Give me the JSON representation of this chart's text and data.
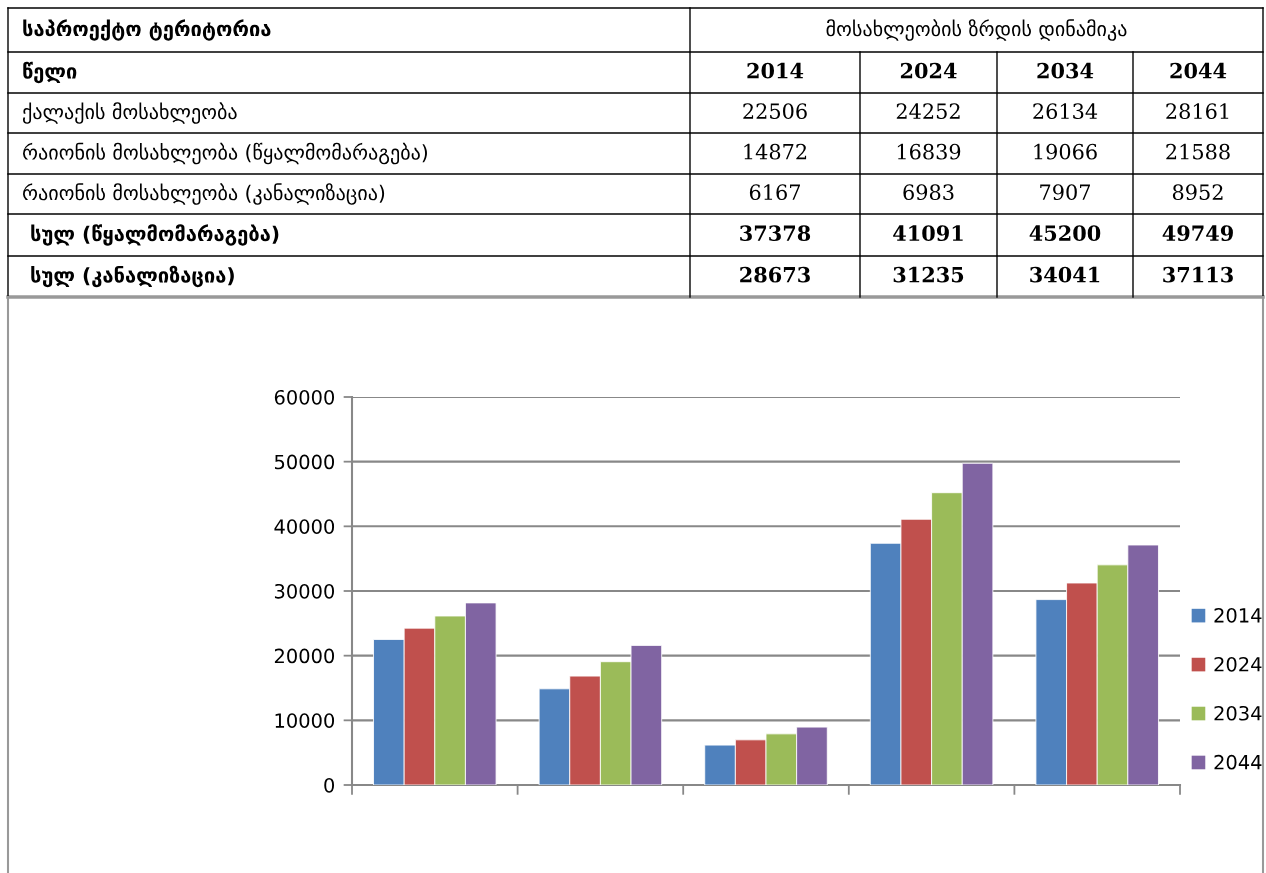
{
  "chart_data": [
    {
      "type": "other",
      "title": "მოსახლეობის ზრდის დინამიკა",
      "annotations": [
        "საპროექტო ტერიტორია",
        "წელი"
      ],
      "categories": [
        "ქალაქის მოსახლეობა",
        "რაიონის მოსახლეობა (წყალმომარაგება)",
        "რაიონის მოსახლეობა (კანალიზაცია)",
        "სულ (წყალმომარაგება)",
        "სულ (კანალიზაცია)"
      ],
      "series": [
        {
          "name": "2014",
          "values": [
            22506,
            14872,
            6167,
            37378,
            28673
          ]
        },
        {
          "name": "2024",
          "values": [
            24252,
            16839,
            6983,
            41091,
            31235
          ]
        },
        {
          "name": "2034",
          "values": [
            26134,
            19066,
            7907,
            45200,
            34041
          ]
        },
        {
          "name": "2044",
          "values": [
            28161,
            21588,
            8952,
            49749,
            37113
          ]
        }
      ],
      "data_labels": true
    },
    {
      "type": "bar",
      "categories": [
        null,
        null,
        null,
        null,
        null
      ],
      "series": [
        {
          "name": "2014",
          "color": "#4f81bd",
          "values": [
            22506,
            14872,
            6167,
            37378,
            28673
          ]
        },
        {
          "name": "2024",
          "color": "#c0504d",
          "values": [
            24252,
            16839,
            6983,
            41091,
            31235
          ]
        },
        {
          "name": "2034",
          "color": "#9bbb59",
          "values": [
            26134,
            19066,
            7907,
            45200,
            34041
          ]
        },
        {
          "name": "2044",
          "color": "#8064a2",
          "values": [
            28161,
            21588,
            8952,
            49749,
            37113
          ]
        }
      ],
      "ylim": [
        0,
        60000
      ],
      "yticks": [
        0,
        10000,
        20000,
        30000,
        40000,
        50000,
        60000
      ],
      "grid": "y",
      "legend": "bottom right",
      "tick_labels": "y"
    }
  ]
}
